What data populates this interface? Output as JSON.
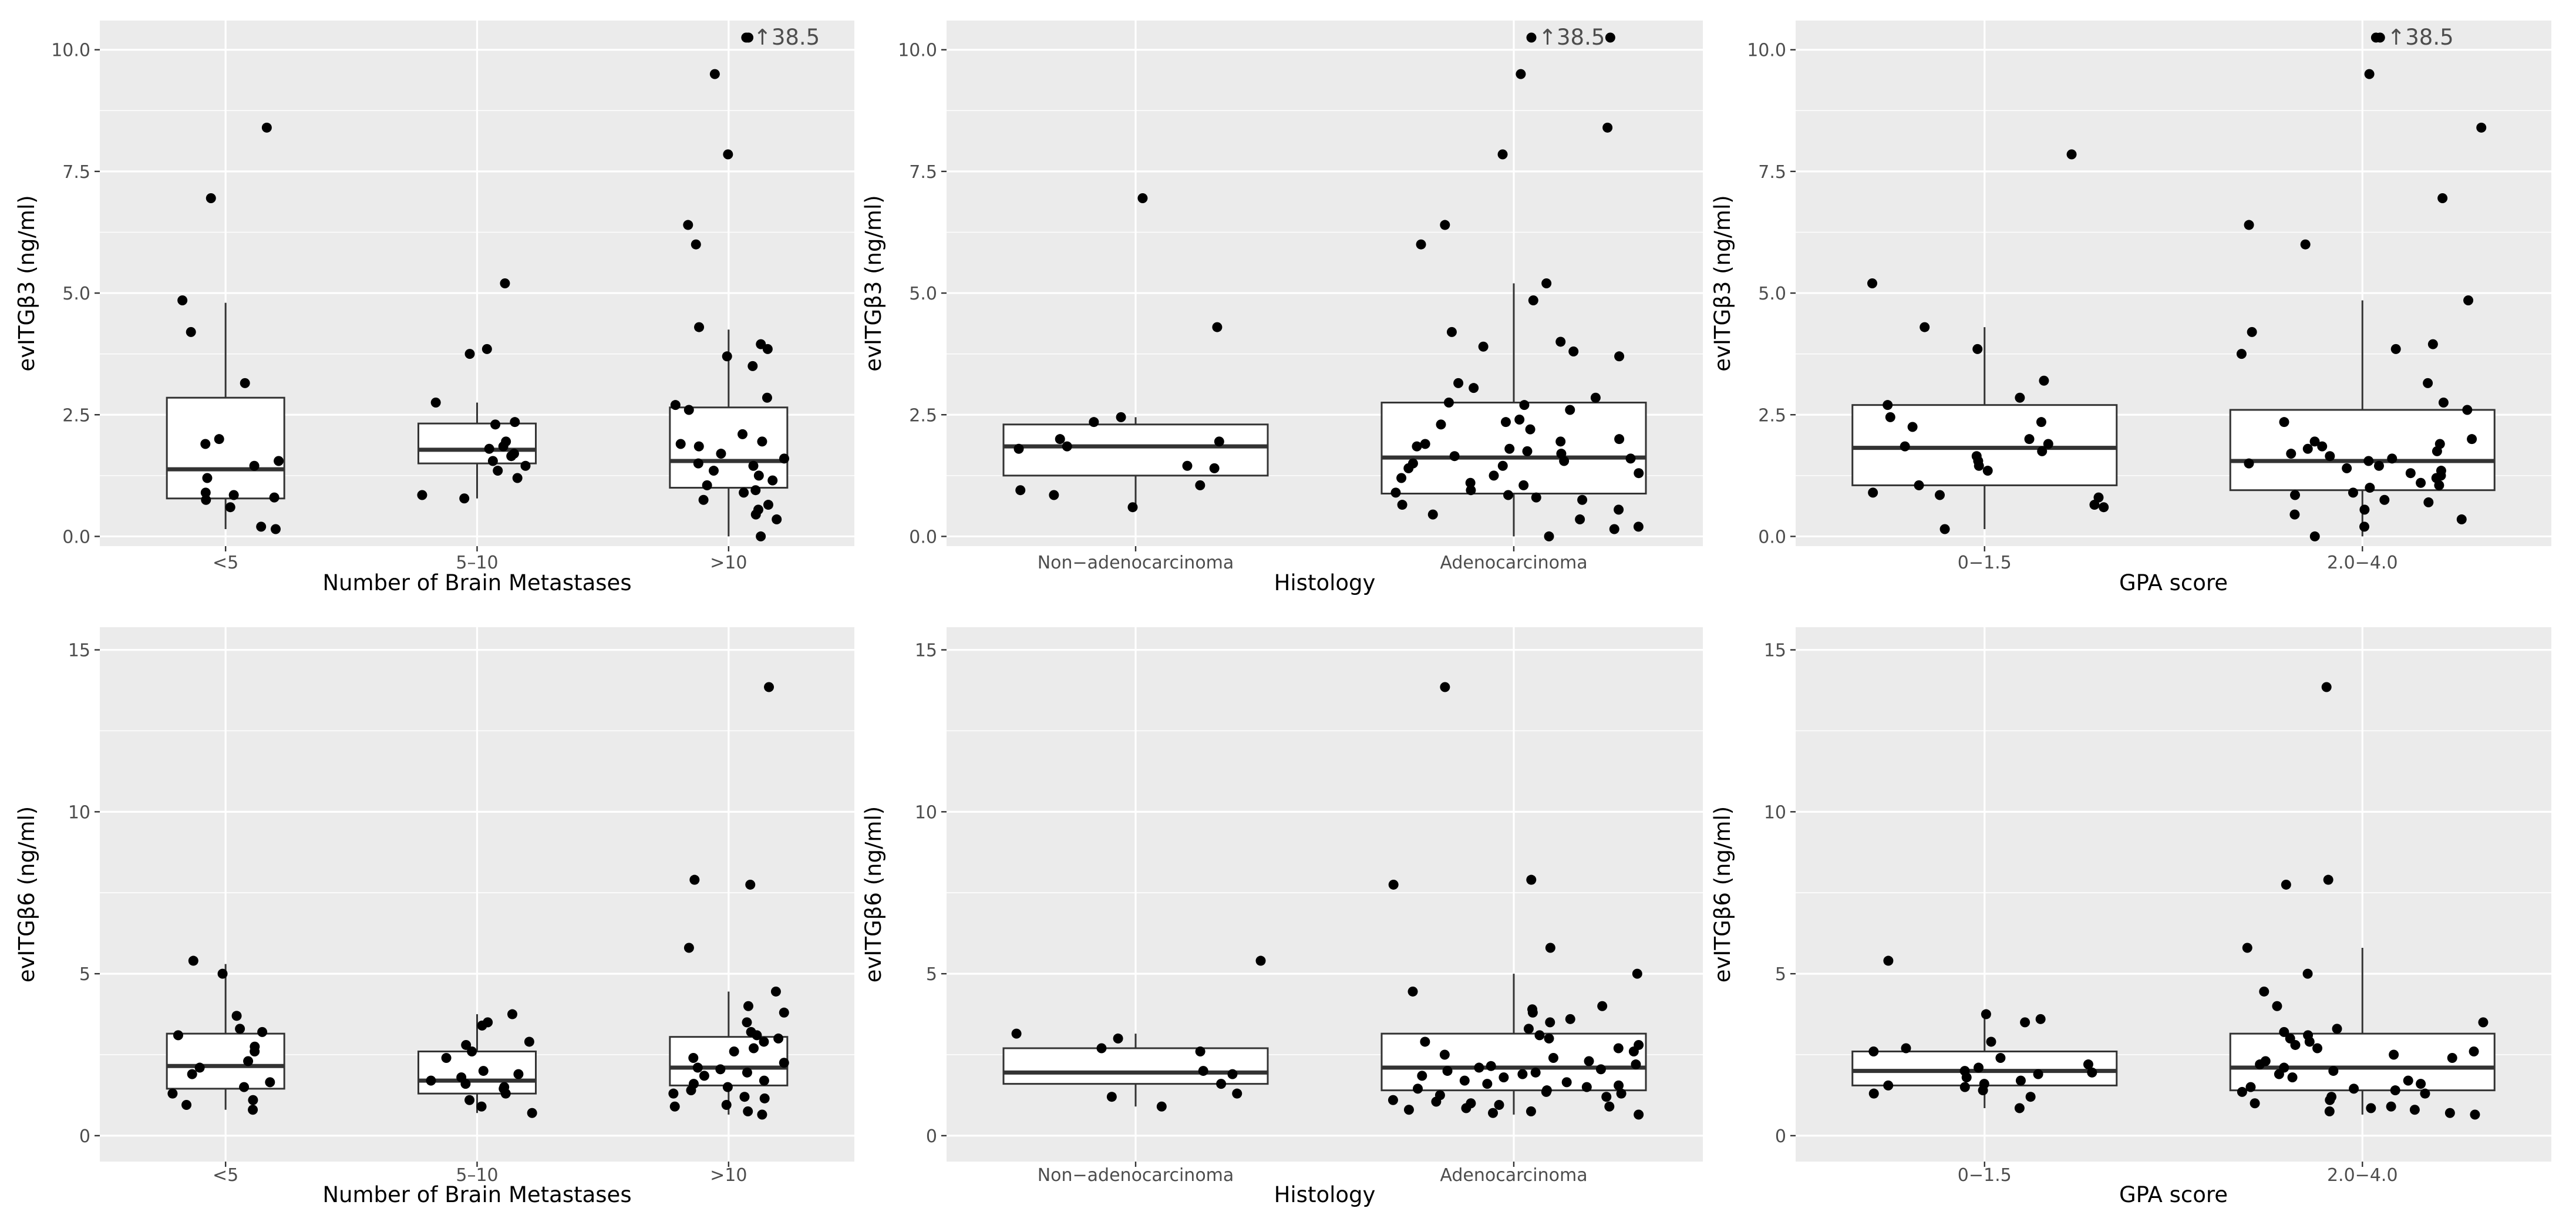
{
  "chart_data": [
    {
      "type": "boxplot",
      "ylabel": "evITGβ3 (ng/ml)",
      "xlabel": "Number of Brain Metastases",
      "categories": [
        "<5",
        "5–10",
        ">10"
      ],
      "ylim": [
        -0.2,
        10.6
      ],
      "yticks": [
        0.0,
        2.5,
        5.0,
        7.5,
        10.0
      ],
      "ytick_labels": [
        "0.0",
        "2.5",
        "5.0",
        "7.5",
        "10.0"
      ],
      "grid": true,
      "boxes": [
        {
          "q1": 0.78,
          "median": 1.38,
          "q3": 2.85,
          "whisker_low": 0.15,
          "whisker_high": 4.8
        },
        {
          "q1": 1.5,
          "median": 1.78,
          "q3": 2.32,
          "whisker_low": 0.78,
          "whisker_high": 2.75
        },
        {
          "q1": 1.0,
          "median": 1.55,
          "q3": 2.65,
          "whisker_low": 0.0,
          "whisker_high": 4.25
        }
      ],
      "points": [
        [
          8.4,
          6.95,
          4.85,
          4.2,
          3.15,
          2.0,
          1.9,
          1.55,
          1.45,
          1.2,
          0.9,
          0.85,
          0.8,
          0.75,
          0.6,
          0.2,
          0.15
        ],
        [
          5.2,
          3.85,
          3.75,
          2.75,
          2.35,
          2.3,
          1.95,
          1.85,
          1.8,
          1.7,
          1.65,
          1.55,
          1.45,
          1.35,
          1.2,
          0.85,
          0.78
        ],
        [
          10.25,
          9.5,
          7.85,
          6.4,
          6.0,
          4.3,
          3.95,
          3.85,
          3.7,
          3.5,
          2.85,
          2.7,
          2.6,
          2.1,
          1.95,
          1.9,
          1.85,
          1.7,
          1.6,
          1.5,
          1.45,
          1.35,
          1.25,
          1.15,
          1.05,
          0.95,
          0.9,
          0.75,
          0.65,
          0.55,
          0.45,
          0.35,
          0.0
        ]
      ],
      "annotations": [
        {
          "category": ">10",
          "y": 10.25,
          "text": "↑38.5"
        }
      ]
    },
    {
      "type": "boxplot",
      "ylabel": "evITGβ3 (ng/ml)",
      "xlabel": "Histology",
      "categories": [
        "Non−adenocarcinoma",
        "Adenocarcinoma"
      ],
      "ylim": [
        -0.2,
        10.6
      ],
      "yticks": [
        0.0,
        2.5,
        5.0,
        7.5,
        10.0
      ],
      "ytick_labels": [
        "0.0",
        "2.5",
        "5.0",
        "7.5",
        "10.0"
      ],
      "grid": true,
      "boxes": [
        {
          "q1": 1.25,
          "median": 1.85,
          "q3": 2.3,
          "whisker_low": 0.6,
          "whisker_high": 2.45
        },
        {
          "q1": 0.88,
          "median": 1.62,
          "q3": 2.75,
          "whisker_low": 0.0,
          "whisker_high": 5.2
        }
      ],
      "points": [
        [
          6.95,
          4.3,
          2.45,
          2.35,
          2.0,
          1.95,
          1.85,
          1.8,
          1.45,
          1.4,
          1.05,
          0.95,
          0.85,
          0.6
        ],
        [
          10.25,
          9.5,
          8.4,
          7.85,
          6.4,
          6.0,
          5.2,
          4.85,
          4.2,
          4.0,
          3.9,
          3.8,
          3.7,
          3.15,
          3.05,
          2.85,
          2.75,
          2.7,
          2.6,
          2.4,
          2.35,
          2.3,
          2.2,
          2.0,
          1.95,
          1.9,
          1.85,
          1.8,
          1.75,
          1.7,
          1.65,
          1.6,
          1.55,
          1.5,
          1.45,
          1.4,
          1.3,
          1.25,
          1.2,
          1.1,
          1.05,
          0.95,
          0.9,
          0.85,
          0.8,
          0.75,
          0.65,
          0.55,
          0.45,
          0.35,
          0.2,
          0.15,
          0.0
        ]
      ],
      "annotations": [
        {
          "category": "Adenocarcinoma",
          "y": 10.25,
          "text": "↑38.5"
        }
      ]
    },
    {
      "type": "boxplot",
      "ylabel": "evITGβ3 (ng/ml)",
      "xlabel": "GPA score",
      "categories": [
        "0−1.5",
        "2.0−4.0"
      ],
      "ylim": [
        -0.2,
        10.6
      ],
      "yticks": [
        0.0,
        2.5,
        5.0,
        7.5,
        10.0
      ],
      "ytick_labels": [
        "0.0",
        "2.5",
        "5.0",
        "7.5",
        "10.0"
      ],
      "grid": true,
      "boxes": [
        {
          "q1": 1.05,
          "median": 1.82,
          "q3": 2.7,
          "whisker_low": 0.15,
          "whisker_high": 4.3
        },
        {
          "q1": 0.95,
          "median": 1.55,
          "q3": 2.6,
          "whisker_low": 0.0,
          "whisker_high": 4.85
        }
      ],
      "points": [
        [
          7.85,
          5.2,
          4.3,
          3.85,
          3.2,
          2.85,
          2.7,
          2.45,
          2.35,
          2.25,
          2.0,
          1.9,
          1.85,
          1.75,
          1.65,
          1.55,
          1.45,
          1.35,
          1.05,
          0.9,
          0.85,
          0.8,
          0.65,
          0.6,
          0.15
        ],
        [
          10.25,
          9.5,
          8.4,
          6.95,
          6.4,
          6.0,
          4.85,
          4.2,
          3.95,
          3.85,
          3.75,
          3.15,
          2.75,
          2.6,
          2.35,
          2.0,
          1.95,
          1.9,
          1.85,
          1.8,
          1.75,
          1.7,
          1.65,
          1.6,
          1.55,
          1.5,
          1.45,
          1.4,
          1.35,
          1.3,
          1.25,
          1.2,
          1.1,
          1.05,
          1.0,
          0.9,
          0.85,
          0.75,
          0.7,
          0.55,
          0.45,
          0.35,
          0.2,
          0.0
        ]
      ],
      "annotations": [
        {
          "category": "2.0−4.0",
          "y": 10.25,
          "text": "↑38.5"
        }
      ]
    },
    {
      "type": "boxplot",
      "ylabel": "evITGβ6 (ng/ml)",
      "xlabel": "Number of Brain Metastases",
      "categories": [
        "<5",
        "5–10",
        ">10"
      ],
      "ylim": [
        -0.8,
        15.7
      ],
      "yticks": [
        0,
        5,
        10,
        15
      ],
      "ytick_labels": [
        "0",
        "5",
        "10",
        "15"
      ],
      "grid": true,
      "boxes": [
        {
          "q1": 1.45,
          "median": 2.15,
          "q3": 3.15,
          "whisker_low": 0.8,
          "whisker_high": 5.3
        },
        {
          "q1": 1.3,
          "median": 1.7,
          "q3": 2.6,
          "whisker_low": 0.7,
          "whisker_high": 3.75
        },
        {
          "q1": 1.55,
          "median": 2.1,
          "q3": 3.05,
          "whisker_low": 0.65,
          "whisker_high": 4.45
        }
      ],
      "points": [
        [
          5.4,
          5.0,
          3.7,
          3.3,
          3.2,
          3.1,
          2.75,
          2.6,
          2.3,
          2.1,
          1.9,
          1.65,
          1.5,
          1.3,
          1.1,
          0.95,
          0.8
        ],
        [
          3.75,
          3.5,
          3.4,
          2.9,
          2.8,
          2.6,
          2.4,
          2.0,
          1.9,
          1.8,
          1.7,
          1.6,
          1.5,
          1.45,
          1.3,
          1.1,
          0.9,
          0.7
        ],
        [
          13.85,
          7.9,
          7.75,
          5.8,
          4.45,
          4.0,
          3.8,
          3.5,
          3.2,
          3.1,
          3.0,
          2.9,
          2.7,
          2.6,
          2.4,
          2.25,
          2.1,
          2.05,
          1.95,
          1.85,
          1.7,
          1.6,
          1.5,
          1.4,
          1.3,
          1.2,
          1.15,
          0.95,
          0.9,
          0.75,
          0.65
        ]
      ],
      "annotations": []
    },
    {
      "type": "boxplot",
      "ylabel": "evITGβ6 (ng/ml)",
      "xlabel": "Histology",
      "categories": [
        "Non−adenocarcinoma",
        "Adenocarcinoma"
      ],
      "ylim": [
        -0.8,
        15.7
      ],
      "yticks": [
        0,
        5,
        10,
        15
      ],
      "ytick_labels": [
        "0",
        "5",
        "10",
        "15"
      ],
      "grid": true,
      "boxes": [
        {
          "q1": 1.6,
          "median": 1.95,
          "q3": 2.7,
          "whisker_low": 0.9,
          "whisker_high": 3.15
        },
        {
          "q1": 1.4,
          "median": 2.1,
          "q3": 3.15,
          "whisker_low": 0.65,
          "whisker_high": 5.0
        }
      ],
      "points": [
        [
          5.4,
          3.15,
          3.0,
          2.7,
          2.6,
          2.0,
          1.9,
          1.6,
          1.3,
          1.2,
          0.9
        ],
        [
          13.85,
          7.9,
          7.75,
          5.8,
          5.0,
          4.45,
          4.0,
          3.9,
          3.8,
          3.6,
          3.5,
          3.3,
          3.1,
          3.0,
          2.9,
          2.8,
          2.7,
          2.6,
          2.5,
          2.4,
          2.3,
          2.2,
          2.15,
          2.1,
          2.05,
          2.0,
          1.95,
          1.9,
          1.85,
          1.8,
          1.7,
          1.65,
          1.6,
          1.55,
          1.5,
          1.45,
          1.4,
          1.35,
          1.3,
          1.25,
          1.2,
          1.1,
          1.05,
          1.0,
          0.95,
          0.9,
          0.85,
          0.8,
          0.75,
          0.7,
          0.65
        ]
      ],
      "annotations": []
    },
    {
      "type": "boxplot",
      "ylabel": "evITGβ6 (ng/ml)",
      "xlabel": "GPA score",
      "categories": [
        "0−1.5",
        "2.0−4.0"
      ],
      "ylim": [
        -0.8,
        15.7
      ],
      "yticks": [
        0,
        5,
        10,
        15
      ],
      "ytick_labels": [
        "0",
        "5",
        "10",
        "15"
      ],
      "grid": true,
      "boxes": [
        {
          "q1": 1.55,
          "median": 2.0,
          "q3": 2.6,
          "whisker_low": 0.85,
          "whisker_high": 3.7
        },
        {
          "q1": 1.4,
          "median": 2.1,
          "q3": 3.15,
          "whisker_low": 0.65,
          "whisker_high": 5.8
        }
      ],
      "points": [
        [
          5.4,
          3.75,
          3.6,
          3.5,
          2.9,
          2.7,
          2.6,
          2.4,
          2.2,
          2.1,
          2.0,
          1.95,
          1.9,
          1.8,
          1.7,
          1.6,
          1.55,
          1.5,
          1.4,
          1.3,
          1.2,
          0.85
        ],
        [
          13.85,
          7.9,
          7.75,
          5.8,
          5.0,
          4.45,
          4.0,
          3.5,
          3.3,
          3.2,
          3.1,
          3.0,
          2.9,
          2.8,
          2.7,
          2.6,
          2.5,
          2.4,
          2.3,
          2.2,
          2.1,
          2.0,
          1.9,
          1.8,
          1.7,
          1.6,
          1.5,
          1.45,
          1.4,
          1.35,
          1.3,
          1.2,
          1.1,
          1.0,
          0.9,
          0.85,
          0.8,
          0.75,
          0.7,
          0.65
        ]
      ],
      "annotations": []
    }
  ]
}
